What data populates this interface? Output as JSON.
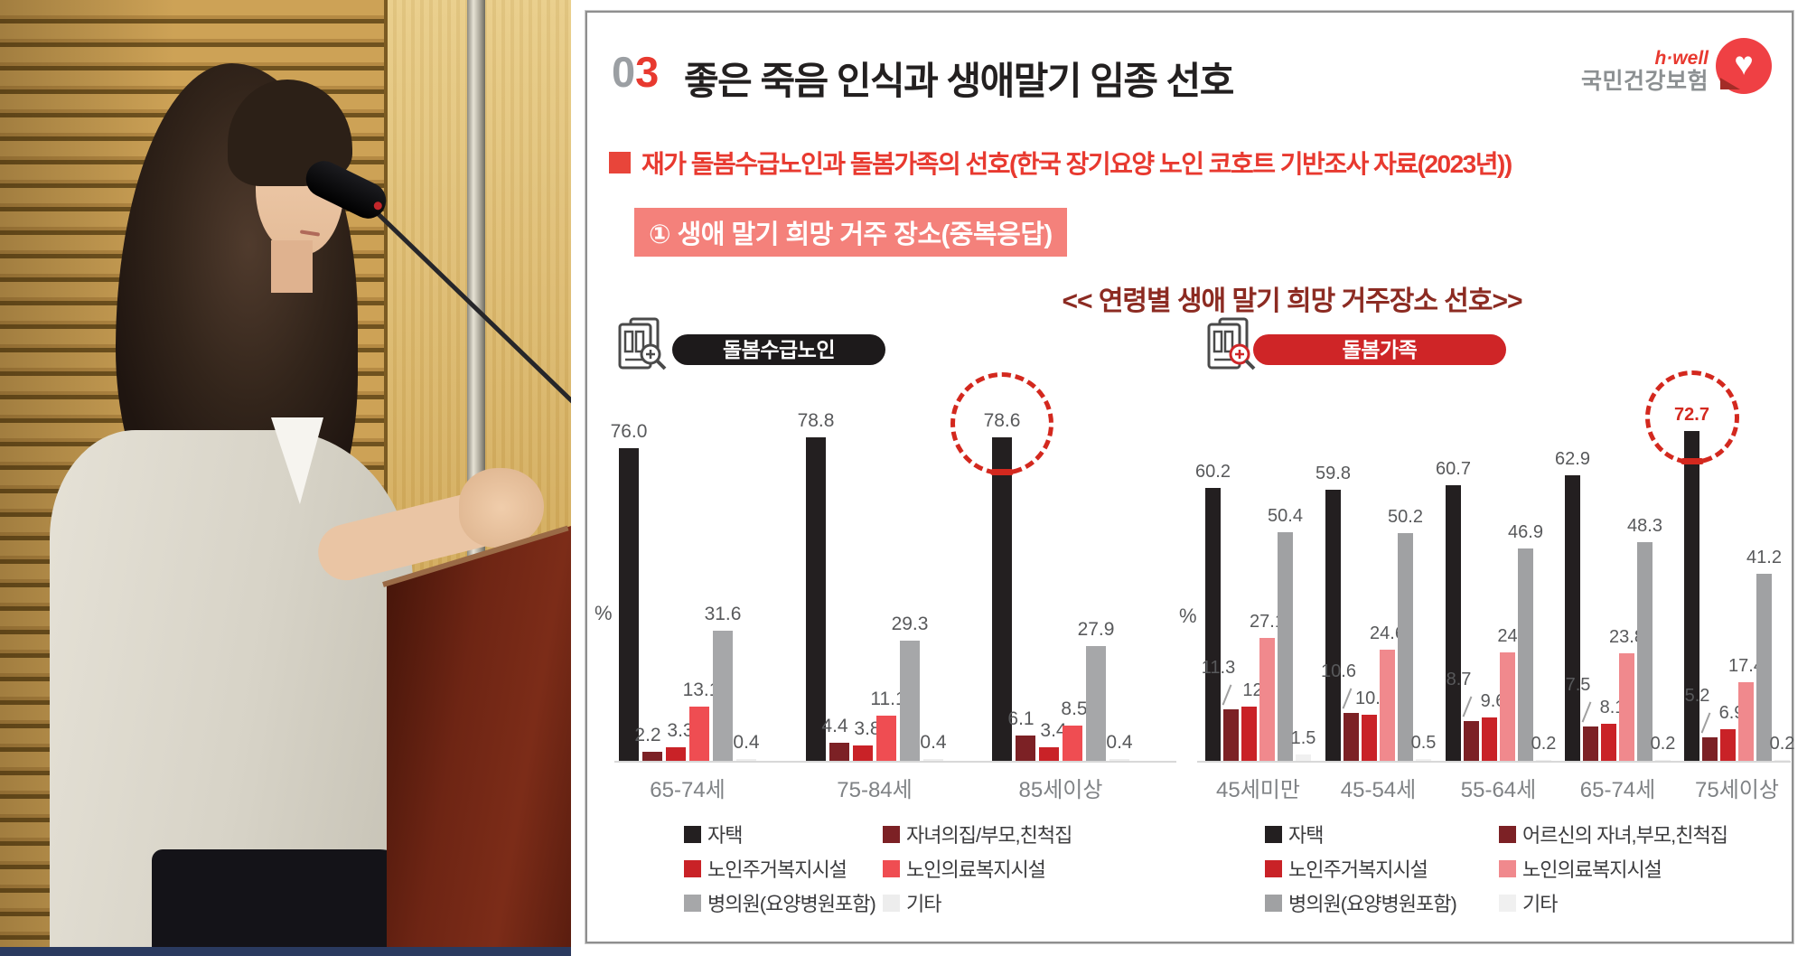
{
  "slide": {
    "section_number": {
      "gray": "0",
      "red": "3"
    },
    "title": "좋은 죽음 인식과 생애말기 임종 선호",
    "logo": {
      "brand": "h·well",
      "org": "국민건강보험"
    },
    "subtitle": "재가 돌봄수급노인과 돌봄가족의 선호(한국 장기요양 노인 코호트 기반조사 자료(2023년))",
    "callout": "① 생애 말기 희망 거주 장소(중복응답)",
    "chart_heading": "<< 연령별 생애 말기 희망 거주장소 선호>>"
  },
  "chart_data": [
    {
      "type": "bar",
      "group_label": "돌봄수급노인",
      "group_label_bg": "#1d1a1b",
      "ylabel": "%",
      "categories": [
        "65-74세",
        "75-84세",
        "85세이상"
      ],
      "colors": [
        "#231f20",
        "#7c2125",
        "#c92227",
        "#ef4d52",
        "#a6a7a9",
        "#ededed"
      ],
      "series": [
        {
          "name": "자택",
          "values": [
            "76.0",
            "78.8",
            "78.6"
          ]
        },
        {
          "name": "자녀의집/부모,친척집",
          "values": [
            "2.2",
            "4.4",
            "6.1"
          ]
        },
        {
          "name": "노인주거복지시설",
          "values": [
            "3.3",
            "3.8",
            "3.4"
          ]
        },
        {
          "name": "노인의료복지시설",
          "values": [
            "13.1",
            "11.1",
            "8.5"
          ]
        },
        {
          "name": "병의원(요양병원포함)",
          "values": [
            "31.6",
            "29.3",
            "27.9"
          ]
        },
        {
          "name": "기타",
          "values": [
            "0.4",
            "0.4",
            "0.4"
          ]
        }
      ],
      "highlight": {
        "category": "85세이상",
        "series": "자택",
        "value": "78.6"
      }
    },
    {
      "type": "bar",
      "group_label": "돌봄가족",
      "group_label_bg": "#cf2527",
      "ylabel": "%",
      "categories": [
        "45세미만",
        "45-54세",
        "55-64세",
        "65-74세",
        "75세이상"
      ],
      "colors": [
        "#231f20",
        "#7c2125",
        "#c92227",
        "#f0898d",
        "#a0a1a3",
        "#f0f0f0"
      ],
      "series": [
        {
          "name": "자택",
          "values": [
            "60.2",
            "59.8",
            "60.7",
            "62.9",
            "72.7"
          ]
        },
        {
          "name": "어르신의 자녀,부모,친척집",
          "values": [
            "11.3",
            "10.6",
            "8.7",
            "7.5",
            "5.2"
          ]
        },
        {
          "name": "노인주거복지시설",
          "values": [
            "12",
            "10.1",
            "9.6",
            "8.1",
            "6.9"
          ]
        },
        {
          "name": "노인의료복지시설",
          "values": [
            "27.1",
            "24.6",
            "24",
            "23.8",
            "17.4"
          ]
        },
        {
          "name": "병의원(요양병원포함)",
          "values": [
            "50.4",
            "50.2",
            "46.9",
            "48.3",
            "41.2"
          ]
        },
        {
          "name": "기타",
          "values": [
            "1.5",
            "0.5",
            "0.2",
            "0.2",
            "0.2"
          ]
        }
      ],
      "highlight": {
        "category": "75세이상",
        "series": "자택",
        "value": "72.7"
      }
    }
  ]
}
